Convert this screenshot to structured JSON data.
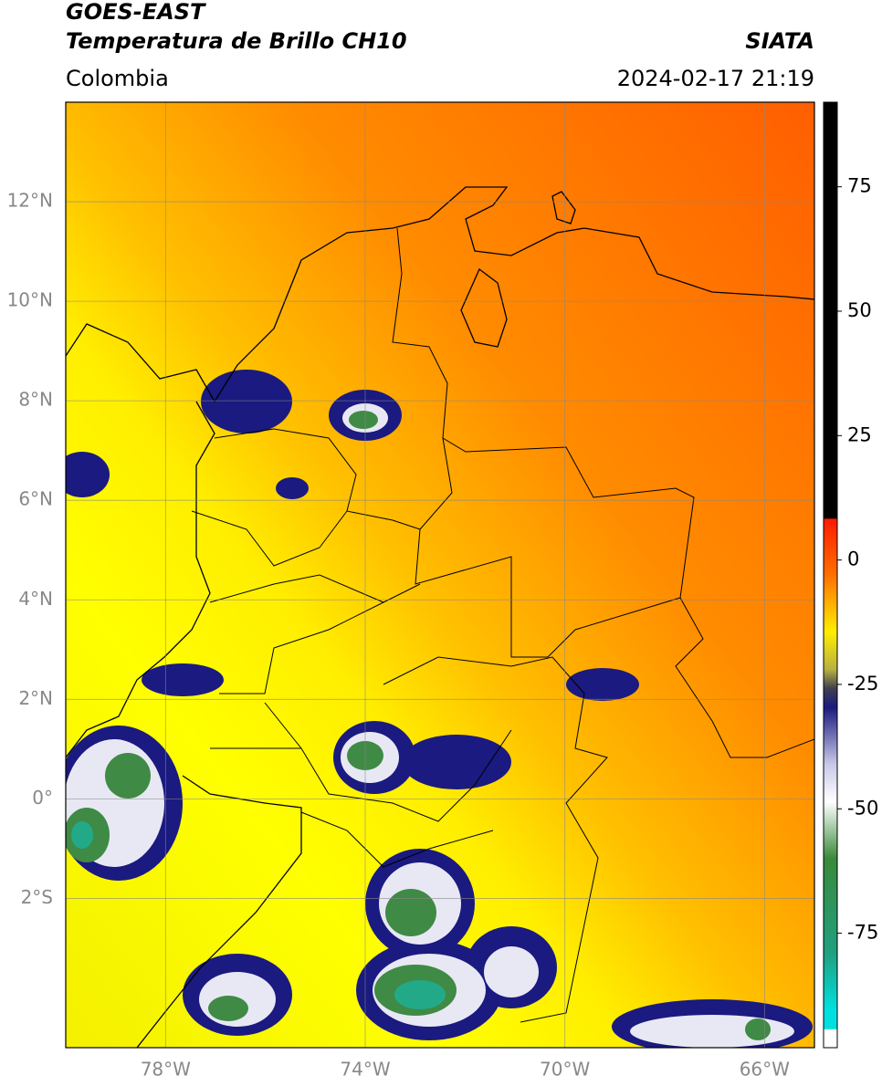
{
  "header": {
    "title": "GOES-EAST",
    "subtitle": "Temperatura de Brillo CH10",
    "region": "Colombia",
    "source": "SIATA",
    "datetime": "2024-02-17 21:19"
  },
  "map": {
    "xlim": [
      -80,
      -65
    ],
    "ylim": [
      -5,
      14
    ],
    "xticks": [
      {
        "value": -78,
        "label": "78°W"
      },
      {
        "value": -74,
        "label": "74°W"
      },
      {
        "value": -70,
        "label": "70°W"
      },
      {
        "value": -66,
        "label": "66°W"
      }
    ],
    "yticks": [
      {
        "value": 12,
        "label": "12°N"
      },
      {
        "value": 10,
        "label": "10°N"
      },
      {
        "value": 8,
        "label": "8°N"
      },
      {
        "value": 6,
        "label": "6°N"
      },
      {
        "value": 4,
        "label": "4°N"
      },
      {
        "value": 2,
        "label": "2°N"
      },
      {
        "value": 0,
        "label": "0°"
      },
      {
        "value": -2,
        "label": "2°S"
      }
    ],
    "grid": true
  },
  "colorbar": {
    "lim": [
      -98,
      92
    ],
    "ticks": [
      75,
      50,
      25,
      0,
      -25,
      -50,
      -75
    ]
  }
}
